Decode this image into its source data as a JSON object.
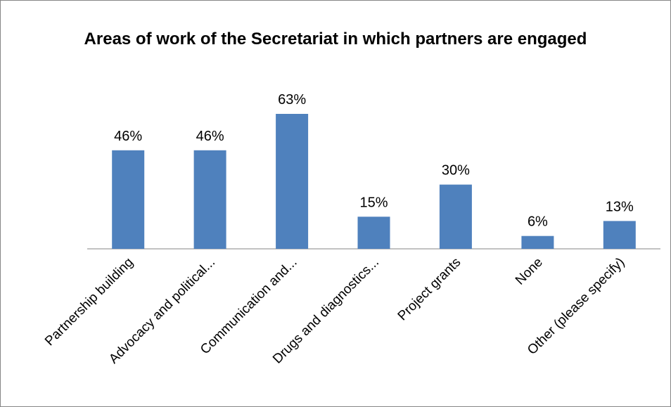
{
  "chart_data": {
    "type": "bar",
    "title": "Areas of work of the Secretariat in which partners are engaged",
    "categories": [
      "Partnership building",
      "Advocacy and political...",
      "Communication and...",
      "Drugs and diagnostics...",
      "Project grants",
      "None",
      "Other (please specify)"
    ],
    "values": [
      46,
      46,
      63,
      15,
      30,
      6,
      13
    ],
    "data_labels": [
      "46%",
      "46%",
      "63%",
      "15%",
      "30%",
      "6%",
      "13%"
    ],
    "unit": "%",
    "ylim": [
      0,
      63
    ],
    "grid": false,
    "legend": "none",
    "colors": {
      "bar": "#4F81BD",
      "axis": "#868686",
      "text": "#000000"
    }
  }
}
